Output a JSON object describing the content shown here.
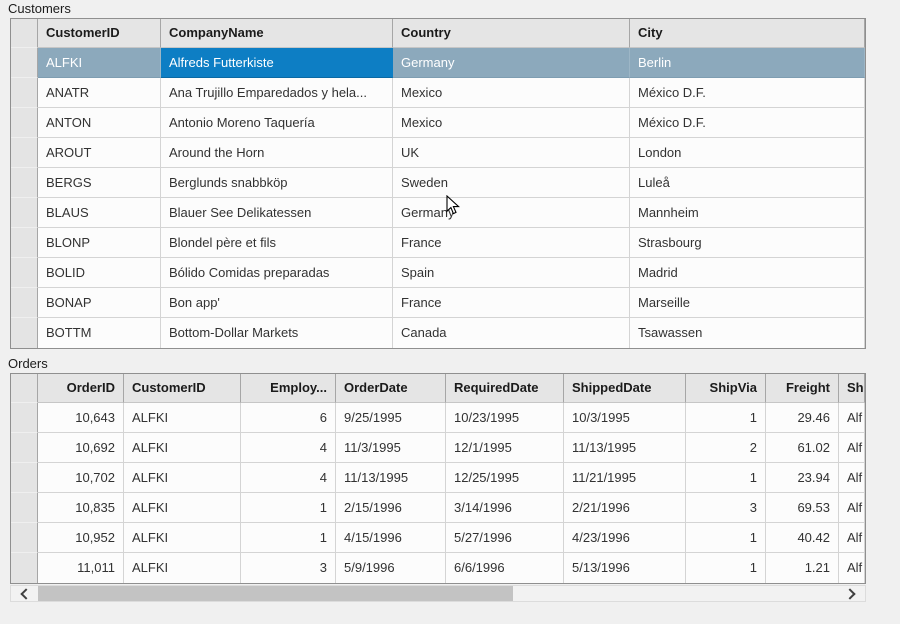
{
  "customers": {
    "label": "Customers",
    "columns": [
      "CustomerID",
      "CompanyName",
      "Country",
      "City"
    ],
    "rows": [
      [
        "ALFKI",
        "Alfreds Futterkiste",
        "Germany",
        "Berlin"
      ],
      [
        "ANATR",
        "Ana Trujillo Emparedados y hela...",
        "Mexico",
        "México D.F."
      ],
      [
        "ANTON",
        "Antonio Moreno Taquería",
        "Mexico",
        "México D.F."
      ],
      [
        "AROUT",
        "Around the Horn",
        "UK",
        "London"
      ],
      [
        "BERGS",
        "Berglunds snabbköp",
        "Sweden",
        "Luleå"
      ],
      [
        "BLAUS",
        "Blauer See Delikatessen",
        "Germany",
        "Mannheim"
      ],
      [
        "BLONP",
        "Blondel père et fils",
        "France",
        "Strasbourg"
      ],
      [
        "BOLID",
        "Bólido Comidas preparadas",
        "Spain",
        "Madrid"
      ],
      [
        "BONAP",
        "Bon app'",
        "France",
        "Marseille"
      ],
      [
        "BOTTM",
        "Bottom-Dollar Markets",
        "Canada",
        "Tsawassen"
      ]
    ],
    "selected_row_index": 0,
    "focused_cell_column_index": 1
  },
  "orders": {
    "label": "Orders",
    "columns": [
      "OrderID",
      "CustomerID",
      "Employ...",
      "OrderDate",
      "RequiredDate",
      "ShippedDate",
      "ShipVia",
      "Freight",
      "Shi"
    ],
    "rows": [
      [
        "10,643",
        "ALFKI",
        "6",
        "9/25/1995",
        "10/23/1995",
        "10/3/1995",
        "1",
        "29.46",
        "Alf"
      ],
      [
        "10,692",
        "ALFKI",
        "4",
        "11/3/1995",
        "12/1/1995",
        "11/13/1995",
        "2",
        "61.02",
        "Alf"
      ],
      [
        "10,702",
        "ALFKI",
        "4",
        "11/13/1995",
        "12/25/1995",
        "11/21/1995",
        "1",
        "23.94",
        "Alf"
      ],
      [
        "10,835",
        "ALFKI",
        "1",
        "2/15/1996",
        "3/14/1996",
        "2/21/1996",
        "3",
        "69.53",
        "Alf"
      ],
      [
        "10,952",
        "ALFKI",
        "1",
        "4/15/1996",
        "5/27/1996",
        "4/23/1996",
        "1",
        "40.42",
        "Alf"
      ],
      [
        "11,011",
        "ALFKI",
        "3",
        "5/9/1996",
        "6/6/1996",
        "5/13/1996",
        "1",
        "1.21",
        "Alf"
      ]
    ]
  },
  "colors": {
    "selection_row": "#8CA9BC",
    "selection_cell": "#0D7EC4",
    "header_bg": "#E5E5E5"
  }
}
